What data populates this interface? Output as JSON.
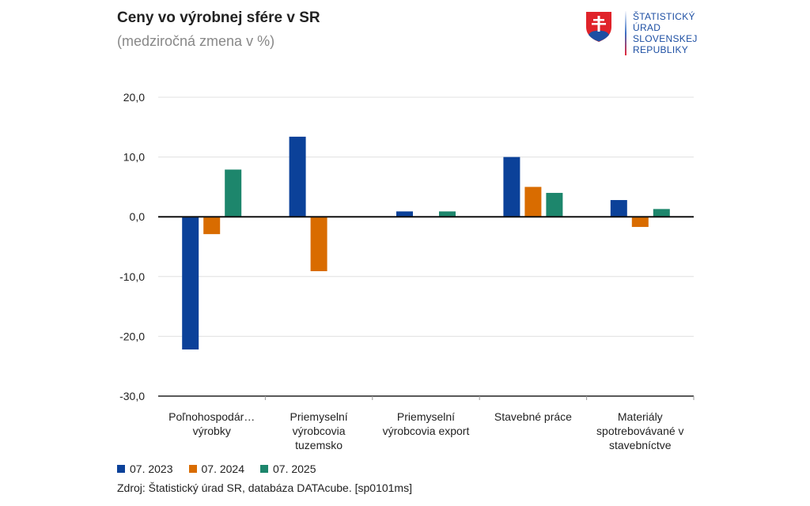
{
  "header": {
    "title": "Ceny vo výrobnej sfére v SR",
    "subtitle": "(medziročná zmena v %)"
  },
  "logo": {
    "lines": [
      "ŠTATISTICKÝ",
      "ÚRAD",
      "SLOVENSKEJ",
      "REPUBLIKY"
    ]
  },
  "source": "Zdroj: Štatistický úrad SR, databáza DATAcube. [sp0101ms]",
  "chart_data": {
    "type": "bar",
    "title": "Ceny vo výrobnej sfére v SR",
    "subtitle": "(medziročná zmena v %)",
    "categories": [
      [
        "Poľnohospodár…",
        "výrobky"
      ],
      [
        "Priemyselní",
        "výrobcovia",
        "tuzemsko"
      ],
      [
        "Priemyselní",
        "výrobcovia export"
      ],
      [
        "Stavebné práce"
      ],
      [
        "Materiály",
        "spotrebovávané v",
        "stavebníctve"
      ]
    ],
    "series": [
      {
        "name": "07. 2023",
        "color": "#0b4199",
        "values": [
          -22.2,
          13.4,
          0.9,
          10.0,
          2.8
        ]
      },
      {
        "name": "07. 2024",
        "color": "#d96c00",
        "values": [
          -2.9,
          -9.1,
          0.0,
          5.0,
          -1.7
        ]
      },
      {
        "name": "07. 2025",
        "color": "#1d866c",
        "values": [
          7.9,
          0.0,
          0.9,
          4.0,
          1.3
        ]
      }
    ],
    "yticks": [
      "20,0",
      "10,0",
      "0,0",
      "-10,0",
      "-20,0",
      "-30,0"
    ],
    "ylim": [
      -30,
      20
    ],
    "grid": true,
    "legend_position": "bottom-left"
  }
}
